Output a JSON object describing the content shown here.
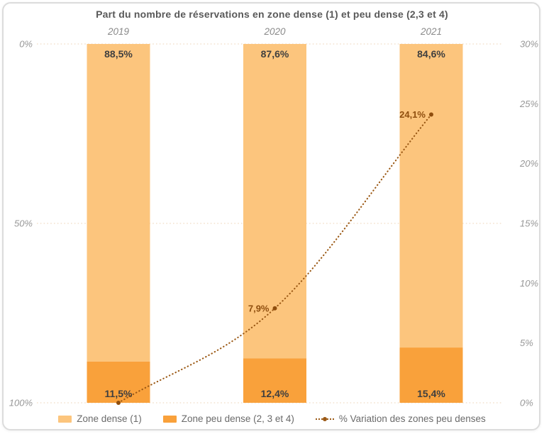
{
  "chart_data": {
    "type": "bar",
    "subtype": "stacked-bar-with-line",
    "title": "Part du nombre de réservations en zone dense (1) et peu dense (2,3 et 4)",
    "categories": [
      "2019",
      "2020",
      "2021"
    ],
    "series": [
      {
        "name": "Zone dense (1)",
        "type": "bar",
        "axis": "left",
        "values": [
          88.5,
          87.6,
          84.6
        ],
        "labels": [
          "88,5%",
          "87,6%",
          "84,6%"
        ],
        "color": "#FCC57D"
      },
      {
        "name": "Zone peu dense (2, 3 et 4)",
        "type": "bar",
        "axis": "left",
        "values": [
          11.5,
          12.4,
          15.4
        ],
        "labels": [
          "11,5%",
          "12,4%",
          "15,4%"
        ],
        "color": "#F9A13B"
      },
      {
        "name": "% Variation des zones peu denses",
        "type": "line",
        "line_style": "dotted",
        "axis": "right",
        "values": [
          0.0,
          7.9,
          24.1
        ],
        "labels": [
          "",
          "7,9%",
          "24,1%"
        ],
        "color": "#9B5915",
        "label_color": "#8F4E0E"
      }
    ],
    "left_axis": {
      "orientation": "inverted",
      "min": 0,
      "max": 100,
      "tick_labels": [
        "0%",
        "50%",
        "100%"
      ],
      "tick_values": [
        0,
        50,
        100
      ]
    },
    "right_axis": {
      "min": 0,
      "max": 30,
      "tick_labels": [
        "30%",
        "25%",
        "20%",
        "15%",
        "10%",
        "5%",
        "0%"
      ],
      "tick_values": [
        30,
        25,
        20,
        15,
        10,
        5,
        0
      ]
    },
    "grid": {
      "visible": true,
      "style": "dotted",
      "color": "#F3E2CE"
    },
    "legend_position": "bottom"
  }
}
